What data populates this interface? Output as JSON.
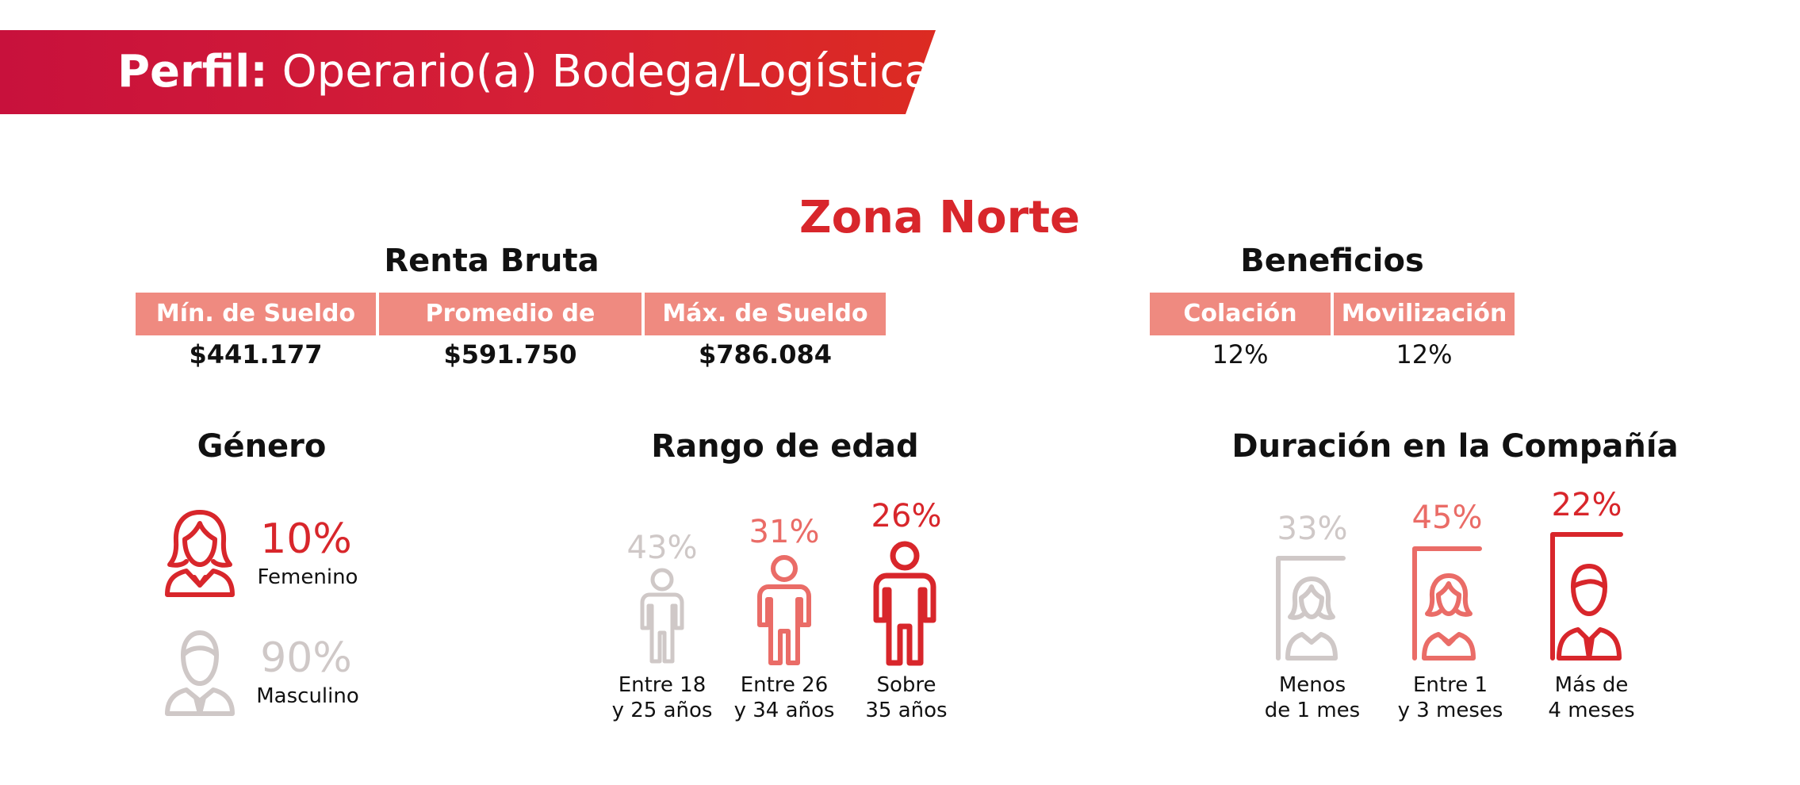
{
  "header": {
    "title_bold": "Perfil:",
    "title_rest": "Operario(a) Bodega/Logística"
  },
  "zone": "Zona Norte",
  "renta_bruta": {
    "title": "Renta Bruta",
    "columns": [
      {
        "label": "Mín. de Sueldo",
        "value": "$441.177"
      },
      {
        "label": "Promedio de Sueldo",
        "value": "$591.750"
      },
      {
        "label": "Máx. de Sueldo",
        "value": "$786.084"
      }
    ]
  },
  "beneficios": {
    "title": "Beneficios",
    "columns": [
      {
        "label": "Colación",
        "value": "12%"
      },
      {
        "label": "Movilización",
        "value": "12%"
      }
    ]
  },
  "genero": {
    "title": "Género",
    "items": [
      {
        "pct": "10%",
        "label": "Femenino",
        "icon": "woman-avatar-icon",
        "color": "#d8262b"
      },
      {
        "pct": "90%",
        "label": "Masculino",
        "icon": "man-avatar-icon",
        "color": "#cfc8c7"
      }
    ]
  },
  "rango_edad": {
    "title": "Rango de edad",
    "items": [
      {
        "pct": "43%",
        "line1": "Entre 18",
        "line2": "y 25 años",
        "icon": "person-icon",
        "color": "#cfc8c7"
      },
      {
        "pct": "31%",
        "line1": "Entre 26",
        "line2": "y 34 años",
        "icon": "person-icon",
        "color": "#ea6c67"
      },
      {
        "pct": "26%",
        "line1": "Sobre",
        "line2": "35 años",
        "icon": "person-icon",
        "color": "#d8262b"
      }
    ]
  },
  "duracion": {
    "title": "Duración en la Compañía",
    "items": [
      {
        "pct": "33%",
        "line1": "Menos",
        "line2": "de 1 mes",
        "icon": "woman-portrait-icon",
        "color": "#cfc8c7"
      },
      {
        "pct": "45%",
        "line1": "Entre 1",
        "line2": "y 3 meses",
        "icon": "woman-portrait-icon",
        "color": "#ea6c67"
      },
      {
        "pct": "22%",
        "line1": "Más de",
        "line2": "4 meses",
        "icon": "man-portrait-icon",
        "color": "#d8262b"
      }
    ]
  },
  "colors": {
    "accent_red": "#d8262b",
    "banner_red": "#c8113c",
    "header_salmon": "#ef8a80",
    "mid_pink": "#ea6c67",
    "muted_grey": "#cfc8c7"
  }
}
